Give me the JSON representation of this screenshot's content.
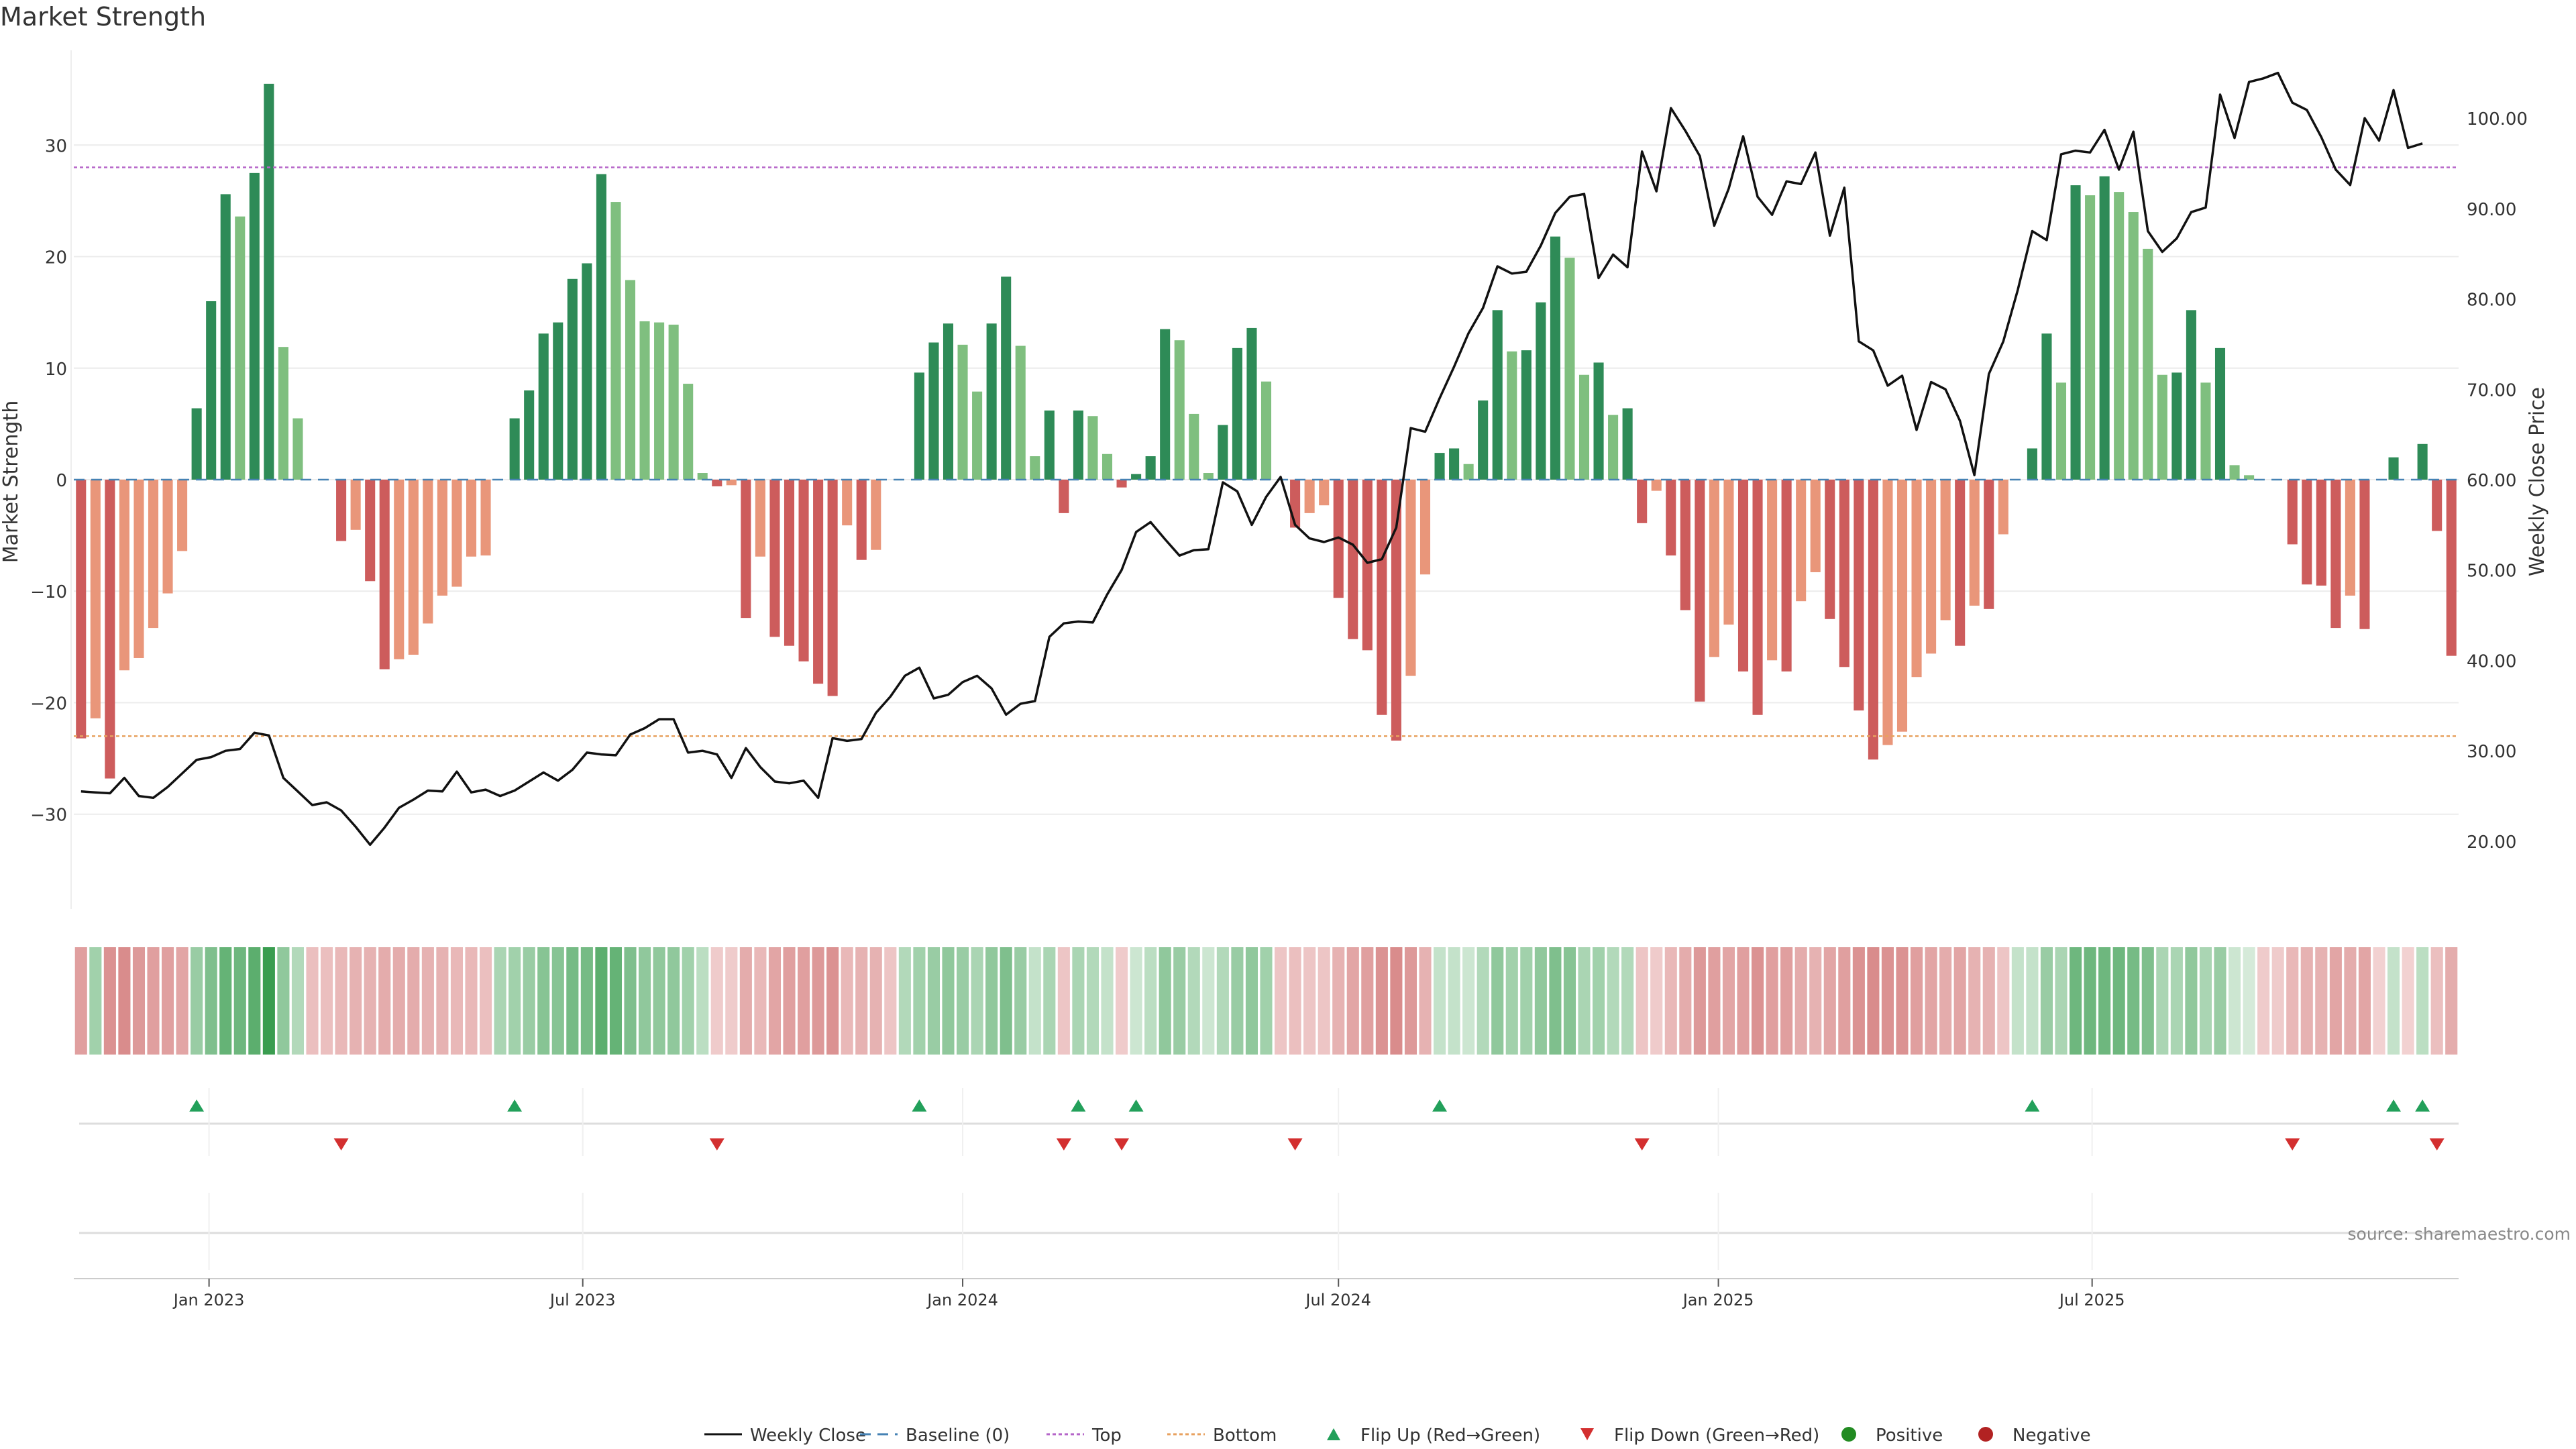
{
  "title": "Market Strength",
  "source": "source: sharemaestro.com",
  "colors": {
    "strong_pos": "#2e8b57",
    "weak_pos": "#7fbf7f",
    "strong_neg": "#cd5c5c",
    "weak_neg": "#e9967a",
    "close_line": "#111111",
    "baseline": "#4682b4",
    "top": "#b565c9",
    "bottom": "#e8a15f",
    "flip_up": "#22a05a",
    "flip_down": "#d32f2f",
    "positive_dot": "#228b22",
    "negative_dot": "#b22222"
  },
  "chart_data": {
    "type": "bar",
    "x_start": "2022-10-31",
    "x_step_days": 7,
    "y_left": {
      "label": "Market Strength",
      "lim": [
        -38.5,
        38.5
      ],
      "ticks": [
        -30,
        -20,
        -10,
        0,
        10,
        20,
        30
      ]
    },
    "y_right": {
      "label": "Weekly Close Price",
      "lim": [
        12.5,
        107.5
      ],
      "ticks": [
        "20.00",
        "30.00",
        "40.00",
        "50.00",
        "60.00",
        "70.00",
        "80.00",
        "90.00",
        "100.00"
      ]
    },
    "x_ticks": [
      {
        "label": "Jan 2023",
        "date": "2023-01-01"
      },
      {
        "label": "Jul 2023",
        "date": "2023-07-01"
      },
      {
        "label": "Jan 2024",
        "date": "2024-01-01"
      },
      {
        "label": "Jul 2024",
        "date": "2024-07-01"
      },
      {
        "label": "Jan 2025",
        "date": "2025-01-01"
      },
      {
        "label": "Jul 2025",
        "date": "2025-07-01"
      }
    ],
    "top_level": 28,
    "bottom_level": -23,
    "strength": [
      -23.2,
      -21.4,
      -26.8,
      -17.1,
      -16,
      -13.3,
      -10.2,
      -6.4,
      6.4,
      16,
      25.6,
      23.6,
      27.5,
      35.5,
      11.9,
      5.5,
      0,
      0,
      -5.5,
      -4.5,
      -9.1,
      -17,
      -16.1,
      -15.7,
      -12.9,
      -10.4,
      -9.6,
      -6.9,
      -6.8,
      0,
      5.5,
      8,
      13.1,
      14.1,
      18,
      19.4,
      27.4,
      24.9,
      17.9,
      14.2,
      14.1,
      13.9,
      8.6,
      0.6,
      -0.6,
      -0.5,
      -12.4,
      -6.9,
      -14.1,
      -14.9,
      -16.3,
      -18.3,
      -19.4,
      -4.1,
      -7.2,
      -6.3,
      0,
      0,
      9.6,
      12.3,
      14,
      12.1,
      7.9,
      14,
      18.2,
      12,
      2.1,
      6.2,
      -3,
      6.2,
      5.7,
      2.3,
      -0.7,
      0.5,
      2.1,
      13.5,
      12.5,
      5.9,
      0.6,
      4.9,
      11.8,
      13.6,
      8.8,
      0,
      -4.3,
      -3,
      -2.3,
      -10.6,
      -14.3,
      -15.3,
      -21.1,
      -23.4,
      -17.6,
      -8.5,
      2.4,
      2.8,
      1.4,
      7.1,
      15.2,
      11.5,
      11.6,
      15.9,
      21.8,
      19.9,
      9.4,
      10.5,
      5.8,
      6.4,
      -3.9,
      -1,
      -6.8,
      -11.7,
      -19.9,
      -15.9,
      -13,
      -17.2,
      -21.1,
      -16.2,
      -17.2,
      -10.9,
      -8.3,
      -12.5,
      -16.8,
      -20.7,
      -25.1,
      -23.8,
      -22.6,
      -17.7,
      -15.6,
      -12.6,
      -14.9,
      -11.3,
      -11.6,
      -4.9,
      0,
      2.8,
      13.1,
      8.7,
      26.4,
      25.5,
      27.2,
      25.8,
      24,
      20.7,
      9.4,
      9.6,
      15.2,
      8.7,
      11.8,
      1.3,
      0.4,
      0,
      0,
      -5.8,
      -9.4,
      -9.5,
      -13.3,
      -10.4,
      -13.4,
      0,
      2,
      0,
      3.2,
      -4.6,
      -15.8
    ],
    "strength_tiles": [
      -0.5,
      0.4,
      -0.6,
      -0.65,
      -0.55,
      -0.5,
      -0.5,
      -0.45,
      0.45,
      0.6,
      0.75,
      0.7,
      0.8,
      1,
      0.5,
      0.3,
      -0.25,
      -0.25,
      -0.3,
      -0.35,
      -0.35,
      -0.4,
      -0.4,
      -0.4,
      -0.35,
      -0.35,
      -0.3,
      -0.3,
      -0.25,
      0.35,
      0.4,
      0.45,
      0.55,
      0.55,
      0.65,
      0.65,
      0.8,
      0.75,
      0.6,
      0.5,
      0.5,
      0.5,
      0.4,
      0.25,
      -0.15,
      -0.15,
      -0.4,
      -0.3,
      -0.45,
      -0.5,
      -0.5,
      -0.55,
      -0.6,
      -0.3,
      -0.35,
      -0.35,
      -0.2,
      0.3,
      0.4,
      0.45,
      0.5,
      0.45,
      0.35,
      0.5,
      0.6,
      0.45,
      0.2,
      0.35,
      -0.2,
      0.35,
      0.3,
      0.2,
      -0.15,
      0.15,
      0.25,
      0.5,
      0.45,
      0.3,
      0.15,
      0.3,
      0.45,
      0.5,
      0.4,
      -0.2,
      -0.25,
      -0.2,
      -0.2,
      -0.35,
      -0.45,
      -0.5,
      -0.6,
      -0.65,
      -0.55,
      -0.35,
      0.2,
      0.2,
      0.15,
      0.3,
      0.5,
      0.4,
      0.4,
      0.5,
      0.6,
      0.55,
      0.35,
      0.4,
      0.3,
      0.3,
      -0.2,
      -0.15,
      -0.3,
      -0.4,
      -0.55,
      -0.5,
      -0.45,
      -0.5,
      -0.6,
      -0.5,
      -0.5,
      -0.4,
      -0.35,
      -0.45,
      -0.5,
      -0.6,
      -0.65,
      -0.6,
      -0.6,
      -0.5,
      -0.45,
      -0.4,
      -0.45,
      -0.35,
      -0.35,
      -0.2,
      0.2,
      0.2,
      0.45,
      0.35,
      0.7,
      0.7,
      0.7,
      0.7,
      0.65,
      0.6,
      0.35,
      0.35,
      0.5,
      0.35,
      0.45,
      0.15,
      0.1,
      -0.15,
      -0.15,
      -0.3,
      -0.35,
      -0.35,
      -0.45,
      -0.4,
      -0.45,
      -0.1,
      0.2,
      -0.1,
      0.25,
      -0.25,
      -0.4
    ],
    "close": [
      25.5,
      25.4,
      25.3,
      27,
      25,
      24.8,
      26,
      27.5,
      29,
      29.3,
      30,
      30.2,
      32,
      31.7,
      27,
      25.5,
      24,
      24.3,
      23.4,
      21.6,
      19.6,
      21.5,
      23.7,
      24.6,
      25.6,
      25.5,
      27.7,
      25.4,
      25.7,
      25,
      25.6,
      26.6,
      27.6,
      26.7,
      27.9,
      29.8,
      29.6,
      29.5,
      31.8,
      32.5,
      33.5,
      33.5,
      29.8,
      30,
      29.6,
      27,
      30.3,
      28.2,
      26.6,
      26.4,
      26.7,
      24.8,
      31.4,
      31.1,
      31.3,
      34.2,
      36,
      38.3,
      39.2,
      35.8,
      36.2,
      37.6,
      38.3,
      36.9,
      34,
      35.2,
      35.5,
      42.6,
      44.1,
      44.3,
      44.2,
      47.3,
      50,
      54.2,
      55.3,
      53.4,
      51.6,
      52.2,
      52.3,
      59.7,
      58.7,
      55,
      58.1,
      60.3,
      55,
      53.5,
      53.1,
      53.6,
      52.8,
      50.8,
      51.2,
      54.7,
      65.7,
      65.3,
      69,
      72.5,
      76.2,
      79,
      83.6,
      82.8,
      83,
      85.9,
      89.5,
      91.3,
      91.6,
      82.3,
      84.9,
      83.5,
      96.3,
      91.9,
      101.1,
      98.6,
      95.8,
      88.1,
      92.2,
      98,
      91.3,
      89.3,
      93,
      92.7,
      96.2,
      87,
      92.3,
      75.3,
      74.3,
      70.4,
      71.5,
      65.5,
      70.8,
      70,
      66.5,
      60.5,
      71.7,
      75.3,
      81,
      87.5,
      86.5,
      96,
      96.4,
      96.2,
      98.7,
      94.3,
      98.5,
      87.5,
      85.2,
      86.7,
      89.6,
      90.1,
      102.6,
      97.8,
      104,
      104.4,
      105,
      101.7,
      100.9,
      97.9,
      94.3,
      92.6,
      100,
      97.5,
      103.1,
      96.7,
      97.2
    ]
  },
  "legend": [
    {
      "key": "close",
      "label": "Weekly Close"
    },
    {
      "key": "baseline",
      "label": "Baseline (0)"
    },
    {
      "key": "top",
      "label": "Top"
    },
    {
      "key": "bottom",
      "label": "Bottom"
    },
    {
      "key": "flip_up",
      "label": "Flip Up (Red→Green)"
    },
    {
      "key": "flip_down",
      "label": "Flip Down (Green→Red)"
    },
    {
      "key": "positive",
      "label": "Positive"
    },
    {
      "key": "negative",
      "label": "Negative"
    }
  ]
}
